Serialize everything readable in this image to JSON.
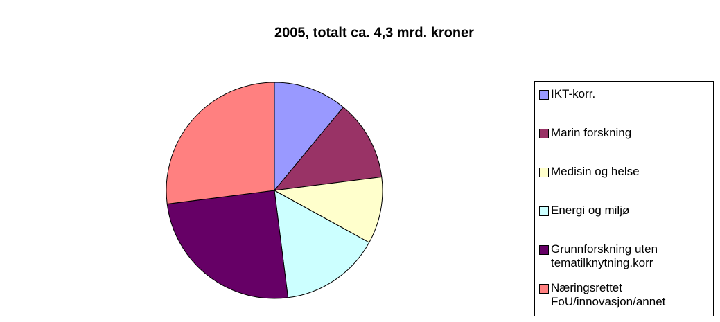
{
  "chart_data": {
    "type": "pie",
    "title": "2005, totalt ca. 4,3 mrd. kroner",
    "categories": [
      "IKT-korr.",
      "Marin forskning",
      "Medisin og helse",
      "Energi og miljø",
      "Grunnforskning uten tematilknytning.korr",
      "Næringsrettet FoU/innovasjon/annet"
    ],
    "values": [
      11,
      12,
      10,
      15,
      25,
      27
    ],
    "colors": [
      "#9999ff",
      "#993366",
      "#ffffcc",
      "#ccffff",
      "#660066",
      "#ff8080"
    ],
    "legend": "right"
  }
}
